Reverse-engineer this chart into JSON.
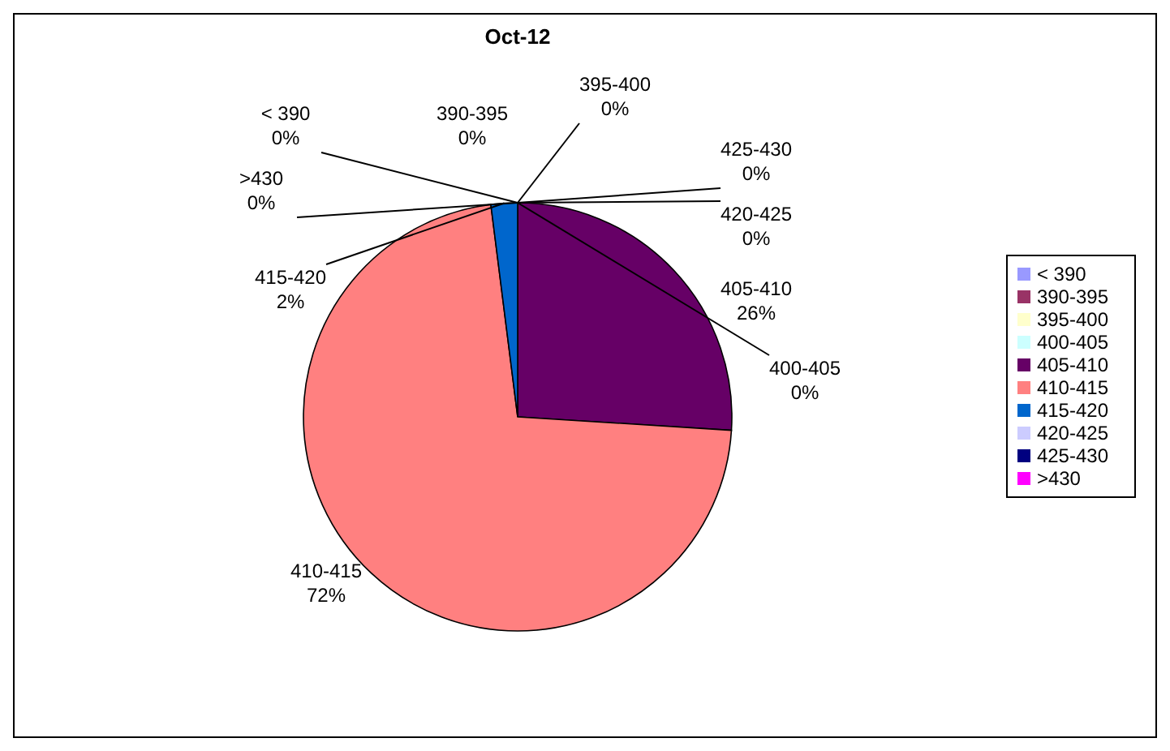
{
  "chart_data": {
    "type": "pie",
    "title": "Oct-12",
    "categories": [
      "< 390",
      "390-395",
      "395-400",
      "400-405",
      "405-410",
      "410-415",
      "415-420",
      "420-425",
      "425-430",
      ">430"
    ],
    "values": [
      0,
      0,
      0,
      0,
      26,
      72,
      2,
      0,
      0,
      0
    ],
    "colors": [
      "#9999ff",
      "#993366",
      "#ffffcc",
      "#ccffff",
      "#660066",
      "#ff8080",
      "#0066cc",
      "#ccccff",
      "#000080",
      "#ff00ff"
    ],
    "value_labels": [
      "0%",
      "0%",
      "0%",
      "0%",
      "26%",
      "72%",
      "2%",
      "0%",
      "0%",
      "0%"
    ],
    "legend": "right"
  }
}
